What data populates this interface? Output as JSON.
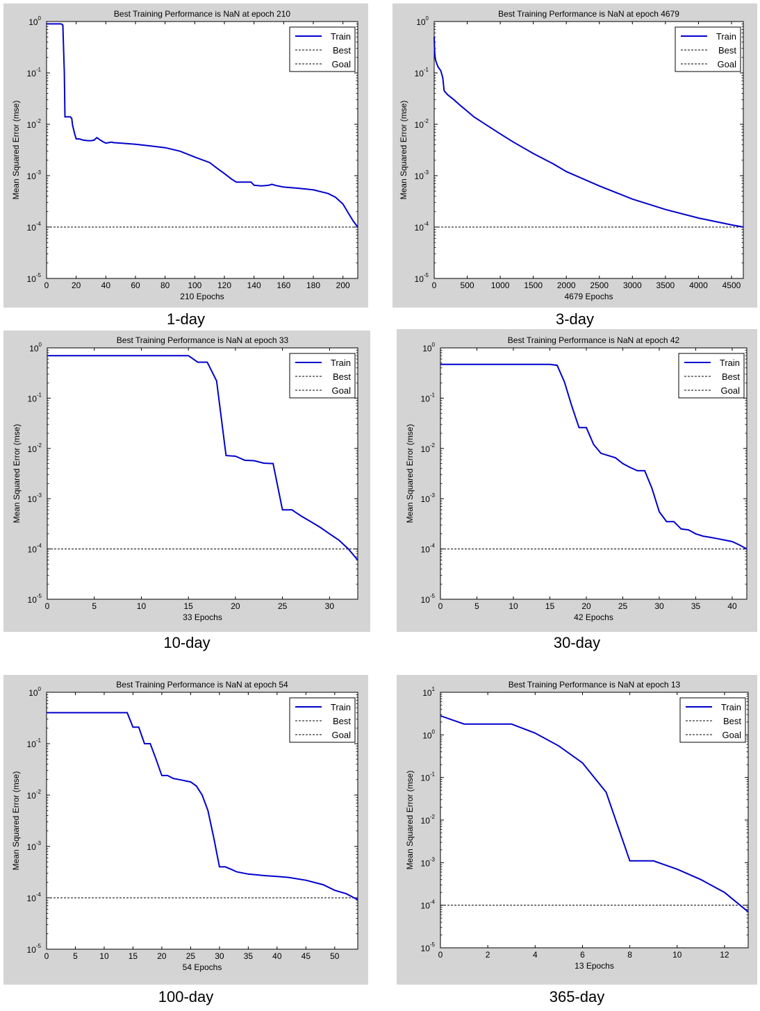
{
  "charts": [
    {
      "caption": "1-day",
      "chart_data": {
        "type": "line",
        "scale_y": "log",
        "title": "Best Training Performance is NaN at epoch 210",
        "xlabel": "210 Epochs",
        "ylabel": "Mean Squared Error  (mse)",
        "xlim": [
          0,
          210
        ],
        "xticks": [
          0,
          20,
          40,
          60,
          80,
          100,
          120,
          140,
          160,
          180,
          200
        ],
        "ylim": [
          1e-05,
          1
        ],
        "yticks": [
          -5,
          -4,
          -3,
          -2,
          -1,
          0
        ],
        "legend": [
          "Train",
          "Best",
          "Goal"
        ],
        "legend_position": "top-right",
        "goal": 0.0001,
        "series": [
          {
            "name": "Train",
            "color": "#0000cc",
            "x": [
              0,
              10,
              11,
              11.2,
              12,
              12.4,
              16,
              17,
              17.6,
              19,
              20,
              22,
              25,
              28,
              30,
              32,
              34,
              36,
              38,
              40,
              42,
              44,
              45,
              50,
              60,
              70,
              80,
              90,
              100,
              110,
              115,
              120,
              125,
              128,
              132,
              138,
              140,
              145,
              150,
              152,
              155,
              160,
              170,
              180,
              190,
              195,
              200,
              204,
              207,
              210
            ],
            "y": [
              0.9,
              0.9,
              0.85,
              0.55,
              0.1,
              0.014,
              0.014,
              0.013,
              0.0095,
              0.0065,
              0.0052,
              0.0052,
              0.0049,
              0.0048,
              0.0048,
              0.0049,
              0.0055,
              0.005,
              0.0046,
              0.0043,
              0.0044,
              0.0045,
              0.0044,
              0.0043,
              0.0041,
              0.0038,
              0.0035,
              0.003,
              0.0023,
              0.0018,
              0.0014,
              0.0011,
              0.00085,
              0.00075,
              0.00075,
              0.00075,
              0.00065,
              0.00063,
              0.00065,
              0.00068,
              0.00064,
              0.0006,
              0.00057,
              0.00053,
              0.00045,
              0.00038,
              0.00028,
              0.00018,
              0.00013,
              0.0001
            ]
          }
        ]
      }
    },
    {
      "caption": "3-day",
      "chart_data": {
        "type": "line",
        "scale_y": "log",
        "title": "Best Training Performance is NaN at epoch 4679",
        "xlabel": "4679 Epochs",
        "ylabel": "Mean Squared Error  (mse)",
        "xlim": [
          0,
          4679
        ],
        "xticks": [
          0,
          500,
          1000,
          1500,
          2000,
          2500,
          3000,
          3500,
          4000,
          4500
        ],
        "ylim": [
          1e-05,
          1
        ],
        "yticks": [
          -5,
          -4,
          -3,
          -2,
          -1,
          0
        ],
        "legend": [
          "Train",
          "Best",
          "Goal"
        ],
        "legend_position": "top-right",
        "goal": 0.0001,
        "series": [
          {
            "name": "Train",
            "color": "#0000cc",
            "x": [
              0,
              5,
              10,
              20,
              40,
              60,
              80,
              100,
              130,
              150,
              200,
              300,
              400,
              500,
              600,
              800,
              1000,
              1200,
              1500,
              1800,
              2000,
              2500,
              3000,
              3500,
              4000,
              4500,
              4679
            ],
            "y": [
              0.5,
              0.3,
              0.22,
              0.18,
              0.15,
              0.13,
              0.12,
              0.11,
              0.08,
              0.045,
              0.038,
              0.03,
              0.023,
              0.018,
              0.014,
              0.0095,
              0.0065,
              0.0045,
              0.0027,
              0.0017,
              0.0012,
              0.00063,
              0.00035,
              0.00022,
              0.00015,
              0.00011,
              0.0001
            ]
          }
        ]
      }
    },
    {
      "caption": "10-day",
      "chart_data": {
        "type": "line",
        "scale_y": "log",
        "title": "Best Training Performance is NaN at epoch 33",
        "xlabel": "33 Epochs",
        "ylabel": "Mean Squared Error  (mse)",
        "xlim": [
          0,
          33
        ],
        "xticks": [
          0,
          5,
          10,
          15,
          20,
          25,
          30
        ],
        "ylim": [
          1e-05,
          1
        ],
        "yticks": [
          -5,
          -4,
          -3,
          -2,
          -1,
          0
        ],
        "legend": [
          "Train",
          "Best",
          "Goal"
        ],
        "legend_position": "top-right",
        "goal": 0.0001,
        "series": [
          {
            "name": "Train",
            "color": "#0000cc",
            "x": [
              0,
              15,
              16,
              17,
              18,
              19,
              20,
              21,
              22,
              23,
              24,
              25,
              26,
              27,
              28,
              29,
              30,
              31,
              32,
              33
            ],
            "y": [
              0.7,
              0.7,
              0.52,
              0.52,
              0.22,
              0.0072,
              0.007,
              0.0058,
              0.0057,
              0.0051,
              0.005,
              0.0006,
              0.0006,
              0.00045,
              0.00035,
              0.00027,
              0.0002,
              0.00015,
              0.0001,
              6e-05
            ]
          }
        ]
      }
    },
    {
      "caption": "30-day",
      "chart_data": {
        "type": "line",
        "scale_y": "log",
        "title": "Best Training Performance is NaN at epoch 42",
        "xlabel": "42 Epochs",
        "ylabel": "Mean Squared Error  (mse)",
        "xlim": [
          0,
          42
        ],
        "xticks": [
          0,
          5,
          10,
          15,
          20,
          25,
          30,
          35,
          40
        ],
        "ylim": [
          1e-05,
          1
        ],
        "yticks": [
          -5,
          -4,
          -3,
          -2,
          -1,
          0
        ],
        "legend": [
          "Train",
          "Best",
          "Goal"
        ],
        "legend_position": "top-right",
        "goal": 0.0001,
        "series": [
          {
            "name": "Train",
            "color": "#0000cc",
            "x": [
              0,
              15,
              16,
              17,
              18,
              19,
              20,
              21,
              22,
              23,
              24,
              25,
              26,
              27,
              28,
              29,
              30,
              31,
              32,
              33,
              34,
              35,
              36,
              37,
              38,
              39,
              40,
              41,
              42
            ],
            "y": [
              0.47,
              0.47,
              0.45,
              0.21,
              0.07,
              0.026,
              0.026,
              0.012,
              0.008,
              0.0072,
              0.0065,
              0.005,
              0.0042,
              0.0036,
              0.0036,
              0.0016,
              0.00055,
              0.00035,
              0.00035,
              0.00025,
              0.00024,
              0.0002,
              0.00018,
              0.00017,
              0.00016,
              0.00015,
              0.00014,
              0.00012,
              0.0001
            ]
          }
        ]
      }
    },
    {
      "caption": "100-day",
      "chart_data": {
        "type": "line",
        "scale_y": "log",
        "title": "Best Training Performance is NaN at epoch 54",
        "xlabel": "54 Epochs",
        "ylabel": "Mean Squared Error  (mse)",
        "xlim": [
          0,
          54
        ],
        "xticks": [
          0,
          5,
          10,
          15,
          20,
          25,
          30,
          35,
          40,
          45,
          50
        ],
        "ylim": [
          1e-05,
          1
        ],
        "yticks": [
          -5,
          -4,
          -3,
          -2,
          -1,
          0
        ],
        "legend": [
          "Train",
          "Best",
          "Goal"
        ],
        "legend_position": "top-right",
        "goal": 0.0001,
        "series": [
          {
            "name": "Train",
            "color": "#0000cc",
            "x": [
              0,
              14,
              15,
              16,
              17,
              18,
              19,
              20,
              21,
              22,
              23,
              24,
              25,
              26,
              27,
              28,
              29,
              30,
              31,
              32,
              33,
              35,
              38,
              40,
              42,
              45,
              48,
              50,
              52,
              54
            ],
            "y": [
              0.4,
              0.4,
              0.21,
              0.21,
              0.1,
              0.1,
              0.05,
              0.024,
              0.024,
              0.021,
              0.02,
              0.019,
              0.018,
              0.015,
              0.01,
              0.005,
              0.0015,
              0.0004,
              0.0004,
              0.00036,
              0.00032,
              0.00029,
              0.00027,
              0.00026,
              0.00025,
              0.00022,
              0.00018,
              0.00014,
              0.00012,
              9.2e-05
            ]
          }
        ]
      }
    },
    {
      "caption": "365-day",
      "chart_data": {
        "type": "line",
        "scale_y": "log",
        "title": "Best Training Performance is NaN at epoch 13",
        "xlabel": "13 Epochs",
        "ylabel": "Mean Squared Error  (mse)",
        "xlim": [
          0,
          13
        ],
        "xticks": [
          0,
          2,
          4,
          6,
          8,
          10,
          12
        ],
        "ylim": [
          1e-05,
          10
        ],
        "yticks": [
          -5,
          -4,
          -3,
          -2,
          -1,
          0,
          1
        ],
        "legend": [
          "Train",
          "Best",
          "Goal"
        ],
        "legend_position": "top-right",
        "goal": 0.0001,
        "series": [
          {
            "name": "Train",
            "color": "#0000cc",
            "x": [
              0,
              1,
              2,
              3,
              4,
              5,
              6,
              7,
              8,
              9,
              10,
              11,
              12,
              13
            ],
            "y": [
              2.8,
              1.8,
              1.8,
              1.8,
              1.1,
              0.55,
              0.22,
              0.045,
              0.0011,
              0.0011,
              0.0007,
              0.0004,
              0.0002,
              7e-05
            ]
          }
        ]
      }
    }
  ]
}
